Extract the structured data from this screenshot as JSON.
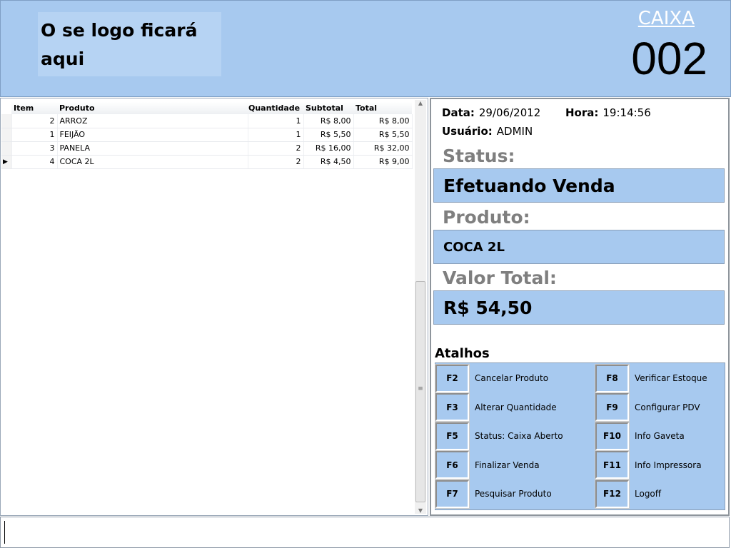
{
  "header": {
    "logo_text": "O se logo ficará aqui",
    "caixa_label": "CAIXA",
    "caixa_number": "002",
    "color": "#a7c9ef"
  },
  "grid": {
    "columns": [
      "Item",
      "Produto",
      "Quantidade",
      "Subtotal",
      "Total"
    ],
    "rows": [
      {
        "item": "2",
        "produto": "ARROZ",
        "quantidade": "1",
        "subtotal": "R$ 8,00",
        "total": "R$ 8,00"
      },
      {
        "item": "1",
        "produto": "FEIJÃO",
        "quantidade": "1",
        "subtotal": "R$ 5,50",
        "total": "R$ 5,50"
      },
      {
        "item": "3",
        "produto": "PANELA",
        "quantidade": "2",
        "subtotal": "R$ 16,00",
        "total": "R$ 32,00"
      },
      {
        "item": "4",
        "produto": "COCA 2L",
        "quantidade": "2",
        "subtotal": "R$ 4,50",
        "total": "R$ 9,00"
      }
    ],
    "current_row_indicator": "▶"
  },
  "info": {
    "data_label": "Data:",
    "data": "29/06/2012",
    "hora_label": "Hora:",
    "hora": "19:14:56",
    "usuario_label": "Usuário:",
    "usuario": "ADMIN"
  },
  "status": {
    "label": "Status:",
    "value": "Efetuando Venda"
  },
  "produto": {
    "label": "Produto:",
    "value": "COCA 2L"
  },
  "valor_total": {
    "label": "Valor Total:",
    "value": "R$ 54,50"
  },
  "atalhos": {
    "title": "Atalhos",
    "items": [
      {
        "key": "F2",
        "label": "Cancelar Produto"
      },
      {
        "key": "F3",
        "label": "Alterar Quantidade"
      },
      {
        "key": "F5",
        "label": "Status: Caixa Aberto"
      },
      {
        "key": "F6",
        "label": "Finalizar Venda"
      },
      {
        "key": "F7",
        "label": "Pesquisar Produto"
      },
      {
        "key": "F8",
        "label": "Verificar Estoque"
      },
      {
        "key": "F9",
        "label": "Configurar PDV"
      },
      {
        "key": "F10",
        "label": "Info Gaveta"
      },
      {
        "key": "F11",
        "label": "Info Impressora"
      },
      {
        "key": "F12",
        "label": "Logoff"
      }
    ]
  },
  "input": {
    "value": ""
  }
}
